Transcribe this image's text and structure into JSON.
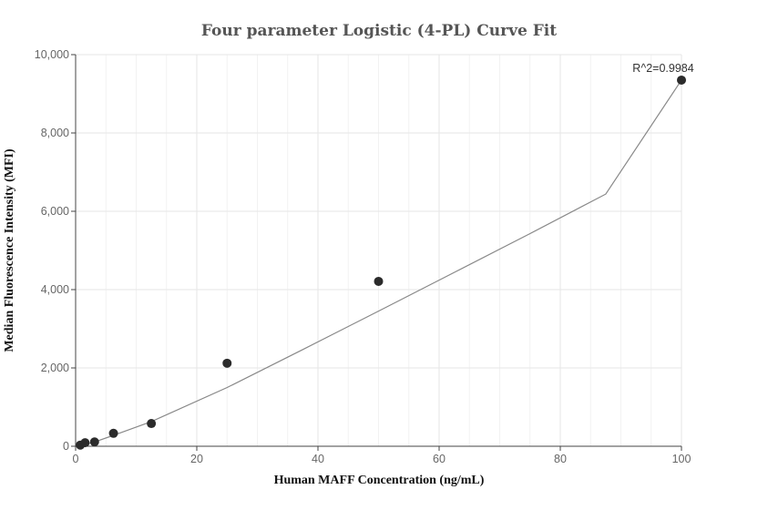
{
  "chart_data": {
    "type": "scatter",
    "title": "Four parameter Logistic (4-PL) Curve Fit",
    "xlabel": "Human MAFF Concentration (ng/mL)",
    "ylabel": "Median Fluorescence Intensity (MFI)",
    "xlim": [
      0,
      100
    ],
    "ylim": [
      0,
      10000
    ],
    "x_ticks": [
      0,
      20,
      40,
      60,
      80,
      100
    ],
    "y_ticks": [
      0,
      2000,
      4000,
      6000,
      8000,
      10000
    ],
    "x_tick_labels": [
      "0",
      "20",
      "40",
      "60",
      "80",
      "100"
    ],
    "y_tick_labels": [
      "0",
      "2,000",
      "4,000",
      "6,000",
      "8,000",
      "10,000"
    ],
    "grid": true,
    "series": [
      {
        "type": "scatter",
        "color": "#2b2b2b",
        "x": [
          0.78,
          1.56,
          3.125,
          6.25,
          12.5,
          25,
          50,
          100
        ],
        "y": [
          30,
          90,
          110,
          330,
          580,
          2120,
          4210,
          9350
        ]
      },
      {
        "type": "line",
        "color": "#888888",
        "x": [
          0.78,
          1.56,
          3.125,
          6.25,
          12.5,
          25,
          37.5,
          50,
          62.5,
          75,
          87.5,
          100
        ],
        "y": [
          20,
          50,
          110,
          280,
          630,
          1500,
          2470,
          3450,
          4440,
          5430,
          6440,
          9350
        ]
      }
    ],
    "annotations": [
      {
        "text": "R^2=0.9984",
        "x": 100,
        "y": 9350
      }
    ]
  }
}
